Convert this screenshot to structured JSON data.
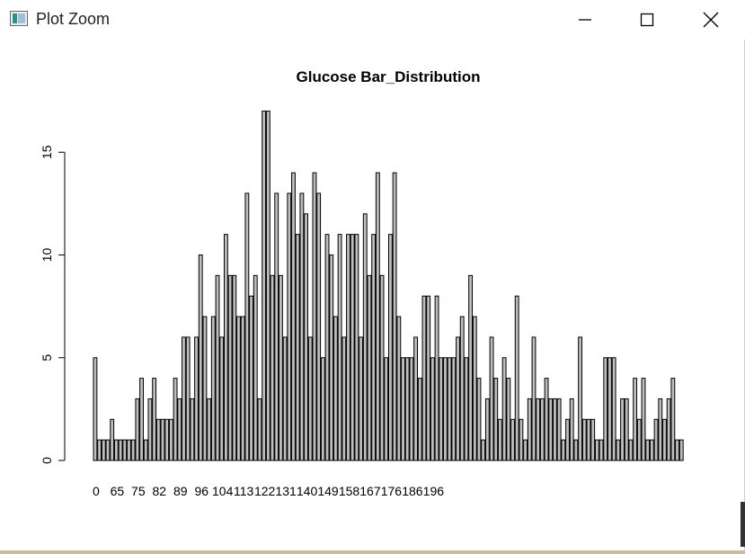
{
  "window": {
    "title": "Plot Zoom",
    "icons": {
      "app": "plot-window-icon",
      "minimize": "minimize-icon",
      "maximize": "maximize-icon",
      "close": "close-icon"
    }
  },
  "chart_data": {
    "type": "bar",
    "title": "Glucose Bar_Distribution",
    "xlabel": "",
    "ylabel": "",
    "ylim": [
      0,
      17
    ],
    "y_ticks": [
      0,
      5,
      10,
      15
    ],
    "x_tick_labels": [
      "0",
      "65",
      "75",
      "82",
      "89",
      "96",
      "104",
      "113",
      "122",
      "131",
      "140",
      "149",
      "158",
      "167",
      "176",
      "186",
      "196"
    ],
    "bar_fill": "#bebebe",
    "bar_stroke": "#000000",
    "values": [
      5,
      1,
      1,
      1,
      2,
      1,
      1,
      1,
      1,
      1,
      3,
      4,
      1,
      3,
      4,
      2,
      2,
      2,
      2,
      4,
      3,
      6,
      6,
      3,
      6,
      10,
      7,
      3,
      7,
      9,
      6,
      11,
      9,
      9,
      7,
      7,
      13,
      8,
      9,
      3,
      17,
      17,
      9,
      13,
      9,
      6,
      13,
      14,
      11,
      13,
      12,
      6,
      14,
      13,
      5,
      11,
      10,
      7,
      11,
      6,
      11,
      11,
      11,
      6,
      12,
      9,
      11,
      14,
      9,
      5,
      11,
      14,
      7,
      5,
      5,
      5,
      6,
      4,
      8,
      8,
      5,
      8,
      5,
      5,
      5,
      5,
      6,
      7,
      5,
      9,
      7,
      4,
      1,
      3,
      6,
      4,
      2,
      5,
      4,
      2,
      8,
      2,
      1,
      3,
      6,
      3,
      3,
      4,
      3,
      3,
      3,
      1,
      2,
      3,
      1,
      6,
      2,
      2,
      2,
      1,
      1,
      5,
      5,
      5,
      1,
      3,
      3,
      1,
      4,
      2,
      4,
      1,
      1,
      2,
      3,
      2,
      3,
      4,
      1,
      1
    ]
  }
}
